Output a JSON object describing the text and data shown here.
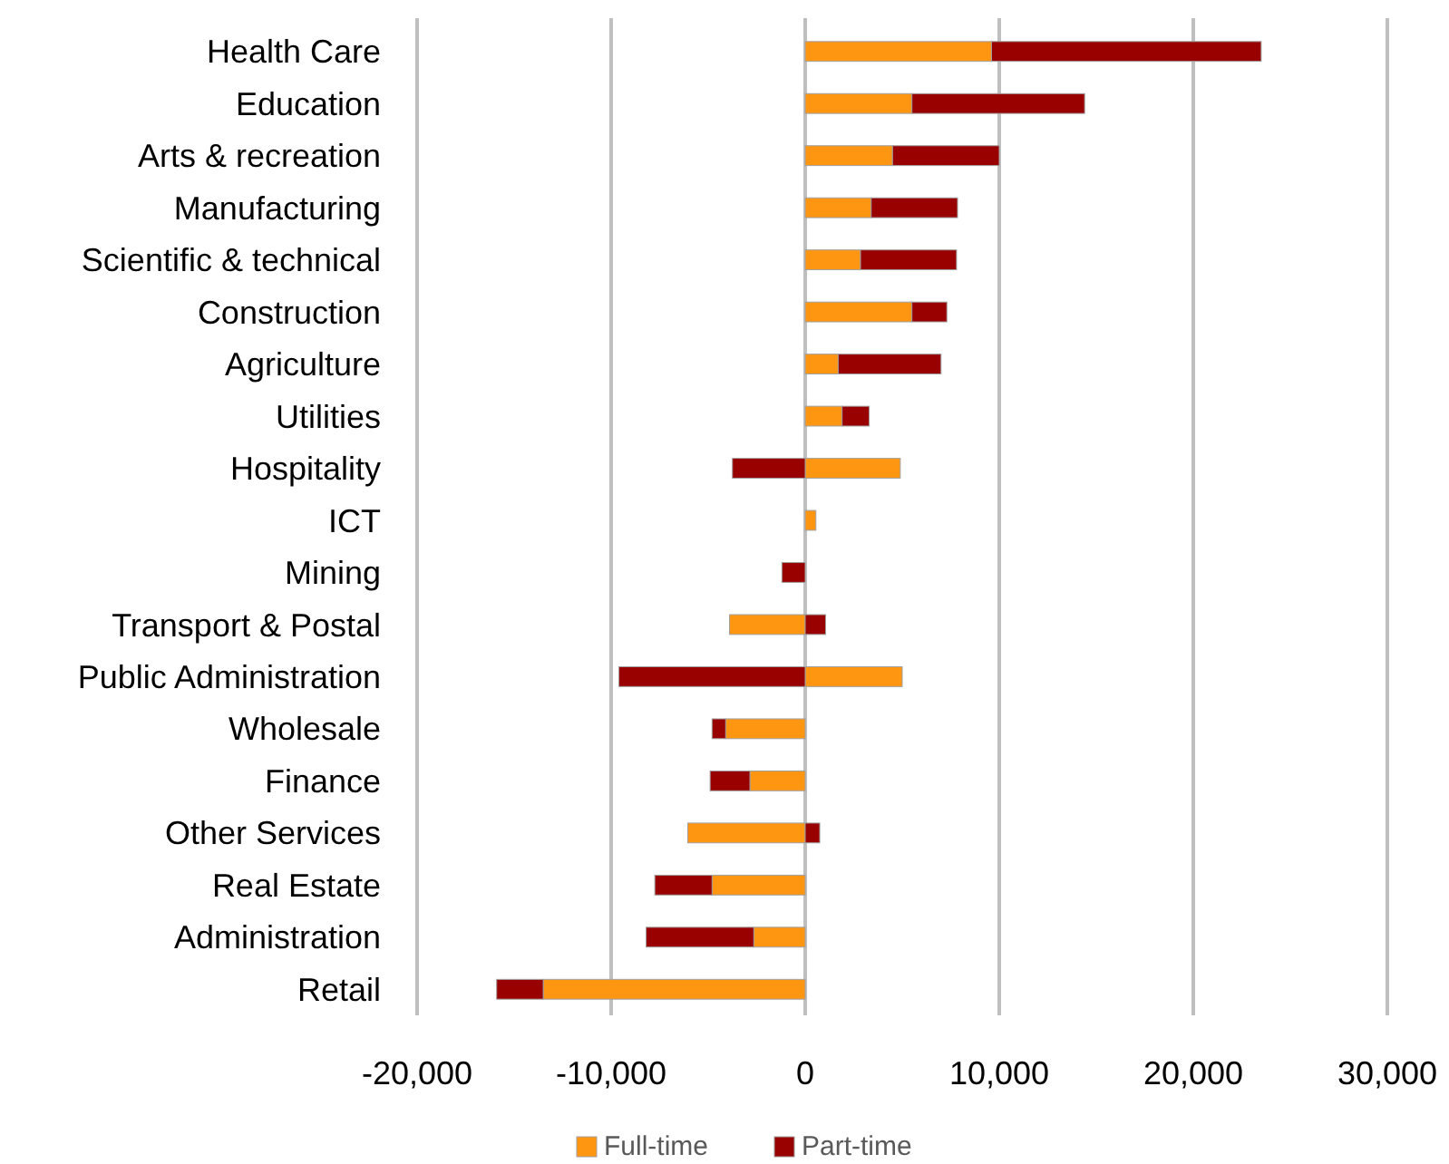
{
  "chart_data": {
    "type": "bar",
    "orientation": "horizontal",
    "stacked": true,
    "categories": [
      "Health Care",
      "Education",
      "Arts & recreation",
      "Manufacturing",
      "Scientific & technical",
      "Construction",
      "Agriculture",
      "Utilities",
      "Hospitality",
      "ICT",
      "Mining",
      "Transport & Postal",
      "Public Administration",
      "Wholesale",
      "Finance",
      "Other Services",
      "Real Estate",
      "Administration",
      "Retail"
    ],
    "series": [
      {
        "name": "Full-time",
        "color": "#ff9612",
        "values": [
          9600,
          5500,
          4500,
          3400,
          2850,
          5500,
          1700,
          1900,
          4900,
          550,
          0,
          -3900,
          5000,
          -4100,
          -2850,
          -6050,
          -4800,
          -2650,
          -13500
        ]
      },
      {
        "name": "Part-time",
        "color": "#990000",
        "values": [
          13900,
          8900,
          5500,
          4450,
          4950,
          1800,
          5300,
          1400,
          -3750,
          0,
          -1200,
          1050,
          -9600,
          -700,
          -2050,
          750,
          -2950,
          -5550,
          -2400
        ]
      }
    ],
    "xlim": [
      -20000,
      30000
    ],
    "xticks": [
      {
        "value": -20000,
        "label": "-20,000"
      },
      {
        "value": -10000,
        "label": "-10,000"
      },
      0,
      {
        "value": 10000,
        "label": "10,000"
      },
      {
        "value": 20000,
        "label": "20,000"
      },
      {
        "value": 30000,
        "label": "30,000"
      }
    ],
    "grid": "x",
    "legend": "bottom"
  }
}
